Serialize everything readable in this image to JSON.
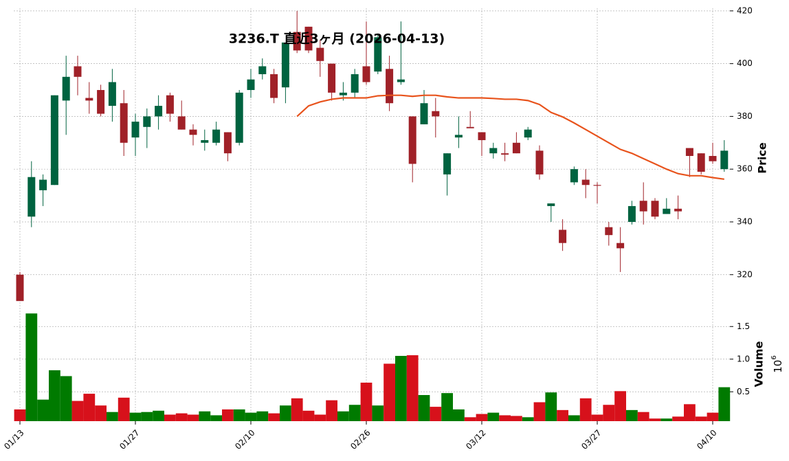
{
  "chart_data": [
    {
      "type": "candlestick",
      "title": "3236.T 直近3ヶ月 (2026-04-13)",
      "ylabel": "Price",
      "categories": [
        "01/13",
        null,
        null,
        null,
        null,
        null,
        null,
        null,
        null,
        null,
        "01/27",
        null,
        null,
        null,
        null,
        null,
        null,
        null,
        null,
        null,
        "02/10",
        null,
        null,
        null,
        null,
        null,
        null,
        null,
        null,
        null,
        "02/26",
        null,
        null,
        null,
        null,
        null,
        null,
        null,
        null,
        null,
        "03/12",
        null,
        null,
        null,
        null,
        null,
        null,
        null,
        null,
        null,
        "03/27",
        null,
        null,
        null,
        null,
        null,
        null,
        null,
        null,
        null,
        "04/10",
        null
      ],
      "open": [
        320,
        342,
        352,
        354,
        386,
        399,
        387,
        390,
        384,
        385,
        372,
        376,
        380,
        388,
        380,
        375,
        370,
        370,
        374,
        370,
        390,
        396,
        396,
        391,
        412,
        414,
        406,
        400,
        388,
        389,
        399,
        397,
        398,
        393,
        380,
        377,
        382,
        358,
        372,
        376,
        374,
        366,
        366,
        370,
        372,
        367,
        346,
        337,
        355,
        356,
        354,
        338,
        332,
        340,
        348,
        348,
        343,
        345,
        368,
        366,
        365,
        360
      ],
      "high": [
        321,
        363,
        358,
        388,
        403,
        403,
        393,
        392,
        398,
        390,
        381,
        383,
        388,
        389,
        386,
        377,
        375,
        378,
        374,
        390,
        398,
        402,
        398,
        408,
        420,
        414,
        409,
        400,
        393,
        398,
        416,
        411,
        403,
        416,
        380,
        390,
        387,
        366,
        380,
        382,
        374,
        370,
        370,
        374,
        376,
        369,
        347,
        341,
        361,
        360,
        355,
        340,
        338,
        348,
        355,
        349,
        349,
        350,
        368,
        366,
        370,
        371
      ],
      "low": [
        310,
        338,
        346,
        354,
        373,
        388,
        381,
        380,
        378,
        365,
        365,
        368,
        375,
        378,
        375,
        369,
        367,
        369,
        363,
        369,
        387,
        394,
        385,
        385,
        404,
        404,
        395,
        386,
        386,
        387,
        392,
        396,
        382,
        392,
        355,
        377,
        372,
        350,
        368,
        376,
        365,
        364,
        363,
        366,
        371,
        356,
        340,
        329,
        354,
        349,
        347,
        331,
        321,
        339,
        339,
        341,
        343,
        341,
        357,
        358,
        362,
        359
      ],
      "close": [
        310,
        357,
        356,
        388,
        395,
        395,
        386,
        381,
        393,
        370,
        378,
        380,
        384,
        381,
        375,
        373,
        371,
        375,
        366,
        389,
        394,
        399,
        387,
        408,
        405,
        405,
        401,
        389,
        389,
        396,
        393,
        410,
        385,
        394,
        362,
        385,
        380,
        366,
        373,
        375.5,
        371,
        368,
        365.5,
        366,
        375,
        358,
        347,
        332,
        360,
        354,
        353.7,
        335,
        330,
        346,
        344,
        342,
        345,
        344,
        365,
        359,
        363,
        367
      ],
      "up_color": "#006340",
      "down_color": "#a02128",
      "series": [
        {
          "name": "MA",
          "color": "#e8531c",
          "values": [
            null,
            null,
            null,
            null,
            null,
            null,
            null,
            null,
            null,
            null,
            null,
            null,
            null,
            null,
            null,
            null,
            null,
            null,
            null,
            null,
            null,
            null,
            null,
            null,
            380,
            384,
            385.5,
            386.5,
            387,
            387,
            387,
            387.8,
            388,
            388,
            387.6,
            388,
            388,
            387.4,
            387,
            387,
            387,
            386.8,
            386.5,
            386.5,
            386,
            384.5,
            381.5,
            379.8,
            377.5,
            375,
            372.5,
            370,
            367.5,
            366,
            364,
            362,
            360,
            358.3,
            357.5,
            357.5,
            356.8,
            356.2
          ]
        }
      ],
      "ylim": [
        309,
        421
      ],
      "yticks": [
        320,
        340,
        360,
        380,
        400,
        420
      ],
      "grid": true
    },
    {
      "type": "bar",
      "ylabel": "Volume",
      "exponent_base": "10",
      "exponent": "6",
      "values": [
        0.23,
        1.7,
        0.38,
        0.83,
        0.74,
        0.36,
        0.47,
        0.29,
        0.19,
        0.41,
        0.18,
        0.19,
        0.21,
        0.15,
        0.17,
        0.15,
        0.2,
        0.14,
        0.23,
        0.23,
        0.18,
        0.2,
        0.17,
        0.29,
        0.4,
        0.21,
        0.15,
        0.37,
        0.2,
        0.3,
        0.64,
        0.29,
        0.93,
        1.05,
        1.06,
        0.45,
        0.27,
        0.48,
        0.23,
        0.11,
        0.16,
        0.18,
        0.14,
        0.13,
        0.11,
        0.34,
        0.49,
        0.22,
        0.14,
        0.4,
        0.15,
        0.3,
        0.51,
        0.22,
        0.19,
        0.09,
        0.09,
        0.12,
        0.31,
        0.12,
        0.18,
        0.57
      ],
      "up_color": "#007a00",
      "down_color": "#d7111b",
      "ylim": [
        0.05,
        1.85
      ],
      "yticks": [
        {
          "value": 0.5,
          "label": "0.5"
        },
        {
          "value": 1.0,
          "label": "1.0"
        },
        {
          "value": 1.5,
          "label": "1.5"
        }
      ],
      "grid": true
    }
  ]
}
